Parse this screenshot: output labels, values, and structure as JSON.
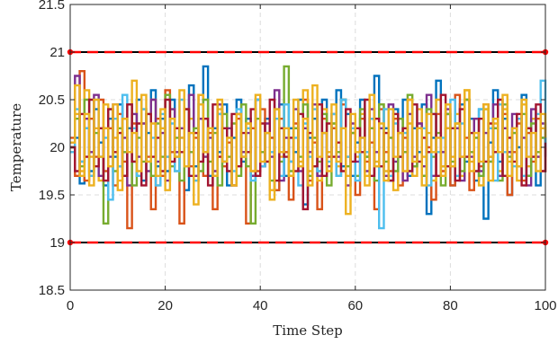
{
  "chart_data": {
    "type": "line",
    "subtype": "stairs",
    "xlabel": "Time Step",
    "ylabel": "Temperature",
    "xlim": [
      0,
      100
    ],
    "ylim": [
      18.5,
      21.5
    ],
    "xticks": [
      0,
      20,
      40,
      60,
      80,
      100
    ],
    "xtick_labels": [
      "0",
      "20",
      "40",
      "60",
      "80",
      "100"
    ],
    "yticks": [
      18.5,
      19,
      19.5,
      20,
      20.5,
      21,
      21.5
    ],
    "ytick_labels": [
      "18.5",
      "19",
      "19.5",
      "20",
      "20.5",
      "21",
      "21.5"
    ],
    "grid": true,
    "bounds": {
      "upper": 21,
      "lower": 19,
      "line_colors": [
        "#000000",
        "#ff0000"
      ],
      "marker_color": "#ff0000"
    },
    "series_colors": [
      "#0072bd",
      "#d95319",
      "#edb120",
      "#7e2f8e",
      "#77ac30",
      "#4dbeee",
      "#a2142f",
      "#edb120"
    ],
    "series": [
      {
        "values": [
          20.0,
          20.1,
          19.62,
          20.2,
          19.75,
          20.4,
          20.05,
          19.6,
          20.3,
          19.9,
          20.45,
          19.7,
          20.2,
          19.85,
          20.5,
          19.65,
          20.15,
          20.6,
          19.8,
          20.3,
          19.75,
          20.5,
          19.9,
          20.1,
          19.55,
          20.65,
          19.8,
          20.3,
          20.85,
          19.7,
          20.2,
          19.95,
          20.45,
          19.6,
          20.1,
          20.5,
          19.85,
          20.3,
          19.7,
          20.5,
          19.8,
          20.3,
          20.1,
          19.55,
          20.45,
          19.7,
          20.2,
          19.95,
          20.5,
          19.4,
          20.1,
          20.3,
          19.75,
          20.5,
          19.9,
          20.2,
          20.6,
          19.8,
          20.35,
          19.7,
          20.05,
          20.5,
          19.9,
          20.3,
          20.75,
          19.8,
          20.2,
          19.65,
          20.4,
          19.9,
          20.5,
          19.7,
          20.2,
          19.95,
          20.45,
          19.3,
          20.1,
          20.7,
          19.8,
          20.35,
          19.6,
          20.2,
          20.45,
          19.85,
          20.3,
          19.65,
          20.4,
          19.25,
          20.05,
          20.6,
          19.85,
          20.3,
          19.5,
          20.2,
          20.0,
          20.55,
          19.7,
          20.3,
          19.6,
          20.1,
          19.9
        ]
      },
      {
        "values": [
          20.1,
          19.7,
          20.8,
          19.65,
          20.3,
          19.9,
          20.5,
          19.75,
          20.2,
          19.6,
          20.35,
          19.85,
          19.15,
          20.25,
          19.7,
          20.4,
          19.9,
          19.35,
          20.3,
          19.7,
          20.6,
          19.95,
          20.2,
          19.2,
          20.4,
          19.8,
          20.1,
          20.55,
          19.7,
          20.15,
          19.35,
          20.35,
          19.8,
          20.05,
          19.6,
          20.3,
          19.9,
          19.2,
          20.2,
          19.75,
          20.4,
          19.85,
          20.1,
          19.55,
          20.3,
          19.95,
          19.45,
          20.25,
          19.8,
          20.5,
          19.65,
          20.05,
          19.35,
          20.3,
          19.9,
          20.2,
          19.7,
          20.45,
          19.9,
          20.15,
          19.5,
          20.3,
          19.85,
          20.05,
          19.35,
          20.4,
          19.95,
          19.75,
          20.3,
          19.6,
          20.1,
          20.5,
          19.8,
          20.25,
          19.7,
          20.0,
          19.45,
          20.35,
          19.75,
          20.2,
          19.6,
          20.55,
          19.9,
          20.1,
          19.55,
          20.3,
          19.8,
          20.45,
          19.9,
          20.2,
          19.7,
          20.35,
          19.5,
          19.95,
          20.25,
          19.65,
          20.15,
          19.85,
          20.3,
          19.75,
          20.0
        ]
      },
      {
        "values": [
          19.95,
          20.35,
          19.75,
          20.6,
          19.9,
          20.2,
          19.65,
          20.45,
          19.8,
          20.1,
          19.55,
          20.3,
          19.95,
          20.7,
          19.7,
          20.25,
          19.85,
          20.5,
          19.6,
          20.2,
          19.9,
          20.4,
          19.75,
          20.1,
          19.8,
          20.3,
          19.65,
          20.55,
          19.9,
          20.2,
          19.75,
          20.4,
          19.85,
          20.1,
          19.6,
          20.35,
          19.95,
          20.25,
          19.75,
          20.5,
          19.8,
          20.15,
          19.55,
          20.3,
          19.9,
          20.45,
          19.7,
          20.2,
          19.85,
          20.6,
          19.75,
          20.1,
          19.65,
          20.4,
          19.95,
          20.25,
          19.8,
          20.5,
          19.7,
          20.15,
          19.9,
          20.35,
          19.6,
          20.2,
          19.85,
          20.45,
          19.75,
          20.1,
          19.55,
          20.3,
          19.95,
          20.25,
          19.7,
          20.4,
          19.9,
          20.15,
          19.65,
          20.5,
          19.8,
          20.2,
          19.9,
          20.35,
          19.7,
          20.6,
          19.85,
          20.1,
          19.6,
          20.45,
          19.9,
          20.25,
          19.75,
          20.4,
          19.85,
          20.15,
          19.65,
          20.5,
          19.8,
          20.3,
          19.9,
          20.2,
          20.05
        ]
      },
      {
        "values": [
          20.05,
          20.75,
          19.85,
          20.3,
          19.95,
          20.55,
          19.7,
          20.2,
          19.9,
          20.45,
          19.8,
          20.1,
          19.6,
          20.35,
          19.9,
          20.25,
          19.75,
          20.5,
          19.85,
          20.15,
          19.65,
          20.4,
          19.95,
          20.2,
          19.8,
          20.55,
          19.7,
          20.3,
          19.9,
          20.1,
          19.75,
          20.45,
          19.85,
          20.2,
          19.6,
          20.35,
          19.95,
          20.15,
          19.7,
          20.5,
          19.8,
          20.25,
          19.9,
          20.6,
          19.65,
          20.1,
          19.85,
          20.4,
          19.75,
          20.2,
          19.95,
          20.45,
          19.7,
          20.15,
          19.8,
          20.35,
          19.9,
          20.5,
          19.6,
          20.25,
          19.85,
          20.1,
          19.75,
          20.4,
          19.95,
          20.2,
          19.7,
          20.45,
          19.85,
          20.15,
          19.65,
          20.35,
          19.9,
          20.25,
          19.8,
          20.55,
          19.7,
          20.1,
          19.95,
          20.4,
          19.8,
          20.2,
          19.65,
          20.5,
          19.9,
          20.3,
          19.75,
          20.15,
          19.85,
          20.45,
          19.7,
          20.2,
          19.95,
          20.35,
          19.8,
          20.1,
          19.6,
          20.4,
          19.9,
          20.25,
          20.0
        ]
      },
      {
        "values": [
          20.0,
          20.3,
          19.8,
          20.5,
          19.7,
          20.15,
          19.9,
          19.2,
          20.4,
          19.75,
          20.2,
          19.95,
          20.45,
          19.6,
          20.1,
          19.85,
          20.35,
          19.7,
          20.25,
          19.9,
          20.55,
          19.8,
          20.1,
          19.65,
          20.4,
          19.95,
          20.2,
          19.75,
          20.5,
          19.85,
          20.15,
          19.6,
          20.35,
          19.9,
          20.25,
          19.7,
          20.45,
          19.8,
          19.2,
          20.3,
          19.95,
          20.15,
          19.65,
          20.4,
          19.85,
          20.85,
          19.75,
          20.2,
          19.9,
          20.45,
          19.7,
          20.1,
          19.85,
          20.35,
          19.6,
          20.25,
          19.95,
          20.5,
          19.8,
          20.15,
          19.7,
          20.4,
          19.9,
          20.2,
          19.65,
          20.45,
          19.85,
          20.1,
          19.75,
          20.3,
          19.95,
          20.55,
          19.8,
          20.2,
          19.7,
          20.4,
          19.9,
          20.15,
          19.6,
          20.35,
          19.85,
          20.25,
          19.75,
          20.5,
          19.95,
          20.1,
          19.7,
          20.4,
          19.85,
          20.2,
          19.65,
          20.45,
          19.9,
          20.15,
          19.8,
          20.35,
          19.7,
          20.25,
          19.95,
          20.1,
          20.05
        ]
      },
      {
        "values": [
          19.95,
          20.4,
          19.85,
          20.2,
          19.7,
          20.5,
          19.9,
          20.1,
          19.45,
          20.3,
          19.8,
          20.55,
          19.95,
          20.2,
          19.7,
          20.4,
          19.85,
          20.1,
          19.6,
          20.35,
          19.9,
          20.25,
          19.75,
          20.5,
          19.8,
          20.15,
          19.65,
          20.45,
          19.95,
          20.2,
          19.7,
          20.35,
          19.85,
          20.1,
          19.75,
          20.4,
          19.9,
          20.2,
          19.65,
          20.5,
          19.8,
          20.15,
          19.95,
          20.3,
          19.7,
          20.45,
          19.85,
          20.1,
          19.6,
          20.25,
          19.9,
          20.4,
          19.75,
          20.15,
          19.85,
          20.35,
          19.7,
          20.5,
          19.9,
          20.2,
          19.65,
          20.1,
          19.95,
          20.3,
          19.8,
          19.15,
          20.4,
          19.7,
          20.25,
          19.9,
          20.15,
          19.75,
          20.45,
          19.85,
          20.2,
          19.6,
          20.35,
          19.95,
          20.1,
          19.8,
          20.5,
          19.7,
          20.25,
          19.9,
          20.15,
          19.75,
          20.4,
          19.85,
          20.2,
          19.65,
          20.45,
          19.95,
          20.1,
          19.8,
          20.3,
          19.7,
          20.2,
          19.9,
          20.35,
          20.7,
          20.0
        ]
      },
      {
        "values": [
          20.0,
          19.75,
          20.35,
          19.9,
          20.5,
          19.8,
          20.2,
          19.65,
          20.4,
          19.95,
          20.15,
          19.7,
          20.45,
          19.85,
          20.25,
          19.6,
          20.35,
          19.9,
          20.1,
          19.75,
          20.5,
          19.85,
          20.2,
          19.95,
          20.4,
          19.7,
          20.15,
          19.85,
          20.3,
          19.6,
          20.45,
          19.9,
          20.2,
          19.75,
          20.35,
          19.8,
          20.15,
          19.95,
          20.4,
          19.7,
          20.25,
          19.85,
          20.5,
          19.65,
          20.2,
          19.9,
          20.1,
          19.75,
          20.35,
          19.35,
          20.15,
          19.8,
          20.45,
          19.7,
          20.25,
          19.9,
          20.05,
          19.75,
          20.4,
          19.85,
          20.2,
          19.95,
          20.5,
          19.7,
          20.3,
          19.8,
          20.15,
          19.65,
          20.35,
          19.9,
          20.2,
          19.75,
          20.45,
          19.85,
          20.1,
          19.95,
          20.35,
          19.7,
          20.55,
          19.8,
          20.2,
          19.65,
          20.4,
          19.9,
          20.15,
          19.75,
          20.3,
          19.85,
          20.25,
          19.95,
          20.5,
          19.7,
          20.1,
          19.85,
          20.35,
          19.6,
          20.2,
          19.9,
          20.45,
          19.75,
          20.05
        ]
      },
      {
        "values": [
          20.05,
          20.65,
          19.7,
          20.35,
          19.6,
          20.5,
          19.9,
          20.2,
          19.8,
          20.45,
          19.65,
          20.3,
          19.95,
          20.15,
          19.75,
          20.55,
          19.85,
          20.25,
          19.7,
          20.4,
          19.55,
          20.3,
          19.9,
          20.6,
          19.8,
          20.15,
          19.4,
          20.45,
          19.95,
          20.2,
          19.7,
          20.5,
          19.85,
          20.1,
          19.6,
          20.35,
          19.9,
          20.25,
          19.75,
          20.55,
          19.85,
          20.15,
          19.45,
          20.4,
          19.95,
          20.2,
          19.7,
          20.5,
          19.8,
          20.3,
          19.6,
          20.65,
          19.9,
          20.15,
          19.75,
          20.45,
          19.85,
          20.2,
          19.3,
          20.35,
          19.95,
          20.1,
          19.7,
          20.55,
          19.8,
          20.25,
          19.65,
          20.4,
          19.9,
          20.15,
          19.75,
          20.5,
          19.85,
          20.2,
          19.6,
          20.35,
          19.95,
          20.1,
          19.7,
          20.45,
          19.8,
          20.25,
          19.9,
          20.6,
          19.75,
          20.15,
          19.85,
          20.4,
          19.65,
          20.3,
          19.95,
          20.55,
          19.7,
          20.2,
          19.8,
          20.45,
          19.9,
          20.15,
          19.75,
          20.35,
          20.1
        ]
      }
    ]
  }
}
